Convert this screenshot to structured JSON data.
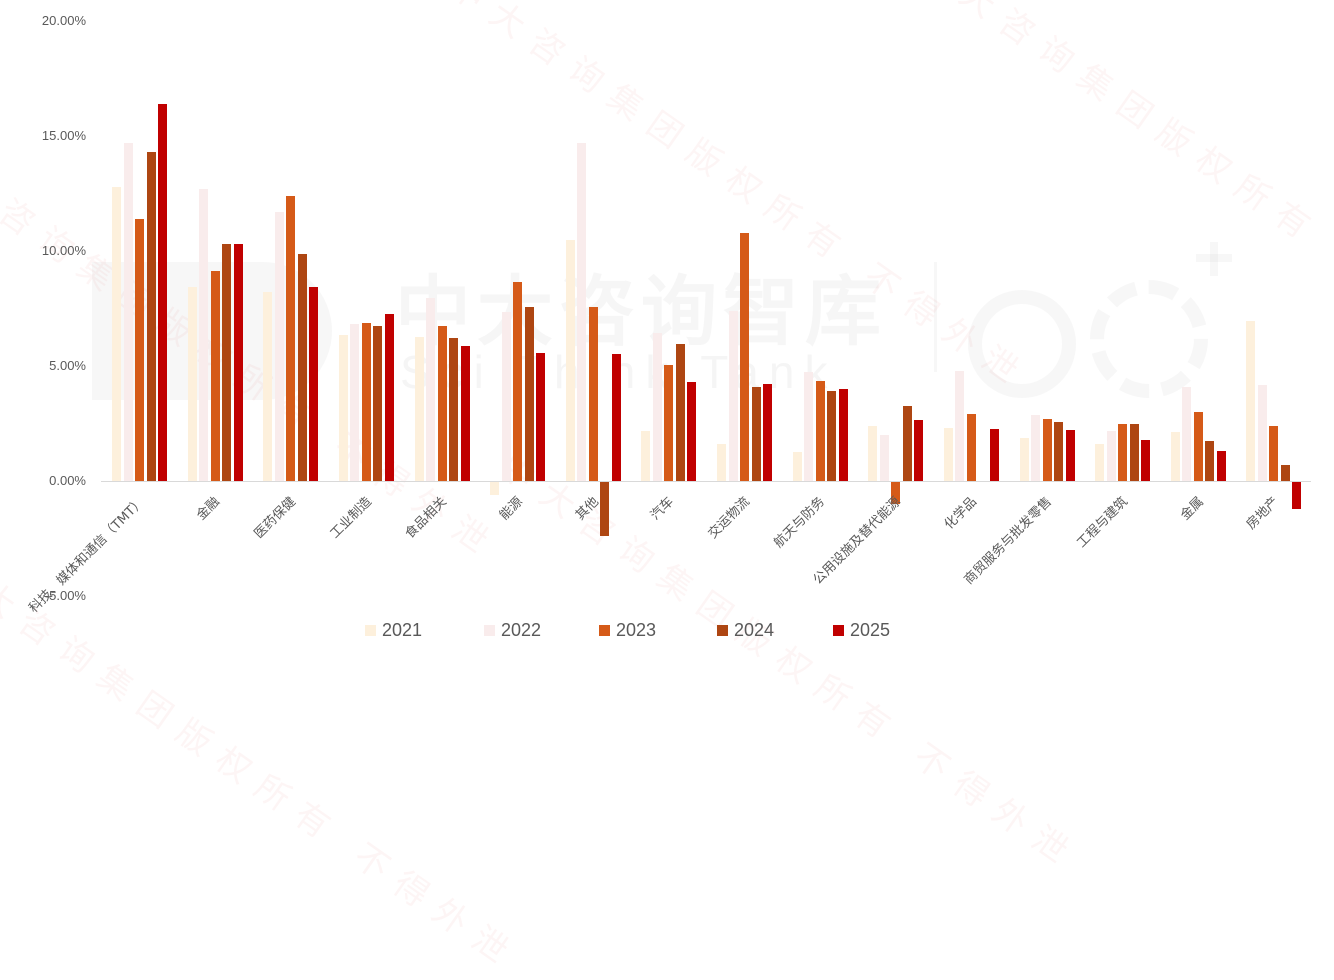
{
  "watermark": {
    "brand_cn": "中大咨询智库",
    "brand_en": "Sci    Think Tank",
    "copyright": "中大咨询集团版权所有 不得外泄"
  },
  "legend": [
    {
      "label": "2021",
      "color": "#FDF0DC"
    },
    {
      "label": "2022",
      "color": "#F9ECEC"
    },
    {
      "label": "2023",
      "color": "#D55A18"
    },
    {
      "label": "2024",
      "color": "#AE4612"
    },
    {
      "label": "2025",
      "color": "#C00000"
    }
  ],
  "chart_data": {
    "type": "bar",
    "title": "",
    "xlabel": "",
    "ylabel": "",
    "ylim": [
      -5,
      20
    ],
    "yticks": [
      "20.00%",
      "15.00%",
      "10.00%",
      "5.00%",
      "0.00%",
      "-5.00%"
    ],
    "ytick_values": [
      20,
      15,
      10,
      5,
      0,
      -5
    ],
    "grid": false,
    "legend_position": "bottom",
    "unit": "%",
    "categories": [
      "科技、媒体和通信（TMT）",
      "金融",
      "医药保健",
      "工业制造",
      "食品相关",
      "能源",
      "其他",
      "汽车",
      "交运物流",
      "航天与防务",
      "公用设施及替代能源",
      "化学品",
      "商贸服务与批发零售",
      "工程与建筑",
      "金属",
      "房地产"
    ],
    "series": [
      {
        "name": "2021",
        "color": "#FDF0DC",
        "values": [
          12.8,
          8.45,
          8.2,
          6.35,
          6.27,
          -0.55,
          10.5,
          2.17,
          1.6,
          1.26,
          2.4,
          2.32,
          1.88,
          1.61,
          2.13,
          6.96
        ]
      },
      {
        "name": "2022",
        "color": "#F9ECEC",
        "values": [
          14.7,
          12.7,
          11.7,
          6.84,
          7.96,
          7.36,
          14.7,
          6.43,
          7.39,
          4.72,
          2.0,
          4.8,
          2.87,
          2.17,
          4.09,
          4.17
        ]
      },
      {
        "name": "2023",
        "color": "#D55A18",
        "values": [
          11.4,
          9.14,
          12.4,
          6.88,
          6.74,
          8.65,
          7.57,
          5.04,
          10.8,
          4.36,
          -0.94,
          2.93,
          2.71,
          2.48,
          3.0,
          2.39
        ]
      },
      {
        "name": "2024",
        "color": "#AE4612",
        "values": [
          14.3,
          10.3,
          9.87,
          6.74,
          6.22,
          7.56,
          -2.33,
          5.96,
          4.09,
          3.93,
          3.27,
          0,
          2.57,
          2.48,
          1.74,
          0.7
        ]
      },
      {
        "name": "2025",
        "color": "#C00000",
        "values": [
          16.4,
          10.3,
          8.45,
          7.27,
          5.87,
          5.56,
          5.52,
          4.3,
          4.22,
          4.01,
          2.67,
          2.27,
          2.22,
          1.78,
          1.3,
          -1.16
        ]
      }
    ]
  }
}
